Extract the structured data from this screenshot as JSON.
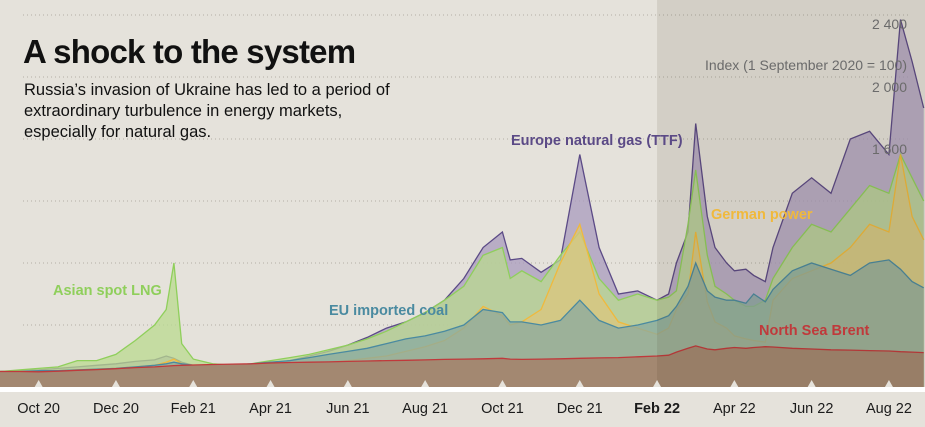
{
  "header": {
    "title": "A shock to the system",
    "subtitle": "Russia’s invasion of Ukraine has led to a period of extraordinary turbulence in energy markets, especially for natural gas."
  },
  "chart_data": {
    "type": "area",
    "title": "A shock to the system",
    "subtitle": "Russia’s invasion of Ukraine has led to a period of extraordinary turbulence in energy markets, especially for natural gas.",
    "ylabel": "Index (1 September 2020 = 100)",
    "xlabel": "",
    "ylim": [
      0,
      2500
    ],
    "yticks": [
      {
        "value": 2400,
        "label": "2 400"
      },
      {
        "value": 2000,
        "label": "2 000"
      },
      {
        "value": 1600,
        "label": "1 600"
      },
      {
        "value": 1200,
        "label": ""
      },
      {
        "value": 800,
        "label": ""
      },
      {
        "value": 400,
        "label": ""
      }
    ],
    "grid": true,
    "x_months_from_sep_2020": [
      0,
      0.5,
      1,
      1.5,
      2,
      2.5,
      3,
      3.5,
      4,
      4.3,
      4.5,
      4.7,
      5,
      5.5,
      6,
      6.5,
      7,
      7.5,
      8,
      8.5,
      9,
      9.5,
      10,
      10.5,
      11,
      11.5,
      12,
      12.5,
      13,
      13.2,
      13.5,
      14,
      14.5,
      15,
      15.5,
      16,
      16.5,
      17,
      17.3,
      17.5,
      17.8,
      18,
      18.3,
      18.5,
      18.8,
      19,
      19.3,
      19.5,
      19.8,
      20,
      20.5,
      21,
      21.5,
      22,
      22.5,
      23,
      23.3,
      23.6,
      23.9
    ],
    "xticks": [
      {
        "month": 1,
        "label": "Oct 20",
        "bold": false
      },
      {
        "month": 3,
        "label": "Dec 20",
        "bold": false
      },
      {
        "month": 5,
        "label": "Feb 21",
        "bold": false
      },
      {
        "month": 7,
        "label": "Apr 21",
        "bold": false
      },
      {
        "month": 9,
        "label": "Jun 21",
        "bold": false
      },
      {
        "month": 11,
        "label": "Aug 21",
        "bold": false
      },
      {
        "month": 13,
        "label": "Oct 21",
        "bold": false
      },
      {
        "month": 15,
        "label": "Dec 21",
        "bold": false
      },
      {
        "month": 17,
        "label": "Feb 22",
        "bold": true
      },
      {
        "month": 19,
        "label": "Apr 22",
        "bold": false
      },
      {
        "month": 21,
        "label": "Jun 22",
        "bold": false
      },
      {
        "month": 23,
        "label": "Aug 22",
        "bold": false
      }
    ],
    "highlight_from_month": 17,
    "series": [
      {
        "name": "Europe natural gas (TTF)",
        "color": "#5b4a86",
        "fill": "#a89bbd",
        "values": [
          100,
          105,
          110,
          120,
          130,
          140,
          150,
          165,
          175,
          200,
          185,
          160,
          140,
          125,
          120,
          130,
          150,
          170,
          200,
          230,
          270,
          320,
          380,
          420,
          480,
          560,
          700,
          900,
          1000,
          820,
          830,
          740,
          820,
          1500,
          900,
          600,
          620,
          560,
          600,
          800,
          1000,
          1700,
          1100,
          900,
          800,
          750,
          760,
          720,
          680,
          900,
          1250,
          1350,
          1250,
          1600,
          1650,
          1500,
          2370,
          2100,
          1800
        ]
      },
      {
        "name": "Asian spot LNG",
        "color": "#8fcf5b",
        "fill": "#b9d98f",
        "values": [
          100,
          110,
          120,
          130,
          170,
          170,
          210,
          300,
          400,
          500,
          800,
          280,
          180,
          150,
          140,
          150,
          170,
          190,
          210,
          240,
          270,
          310,
          360,
          420,
          480,
          560,
          650,
          850,
          900,
          700,
          750,
          680,
          850,
          1000,
          700,
          560,
          600,
          560,
          580,
          620,
          1050,
          1400,
          850,
          650,
          600,
          560,
          520,
          520,
          560,
          700,
          900,
          1050,
          1000,
          1150,
          1300,
          1250,
          1500,
          1350,
          1200
        ]
      },
      {
        "name": "German power",
        "color": "#f0b93c",
        "fill": "#dcc57e",
        "values": [
          100,
          100,
          105,
          105,
          110,
          115,
          120,
          130,
          140,
          160,
          180,
          150,
          130,
          125,
          120,
          125,
          130,
          140,
          150,
          160,
          170,
          185,
          200,
          230,
          260,
          300,
          380,
          520,
          460,
          400,
          420,
          500,
          800,
          1050,
          600,
          420,
          380,
          340,
          380,
          500,
          600,
          1000,
          550,
          420,
          380,
          330,
          310,
          300,
          290,
          560,
          700,
          750,
          800,
          900,
          1050,
          1000,
          1500,
          1100,
          950
        ]
      },
      {
        "name": "EU imported coal",
        "color": "#4a8aa0",
        "fill": "#8aa9a0",
        "values": [
          100,
          100,
          105,
          105,
          110,
          115,
          120,
          130,
          140,
          150,
          160,
          150,
          140,
          135,
          140,
          150,
          160,
          170,
          190,
          210,
          230,
          250,
          280,
          310,
          330,
          360,
          400,
          500,
          480,
          420,
          420,
          400,
          430,
          560,
          430,
          380,
          400,
          430,
          460,
          520,
          650,
          800,
          620,
          580,
          560,
          560,
          540,
          600,
          550,
          630,
          750,
          800,
          760,
          720,
          800,
          820,
          760,
          680,
          640
        ]
      },
      {
        "name": "North Sea Brent",
        "color": "#c0393b",
        "fill": "#a38871",
        "values": [
          100,
          100,
          98,
          102,
          108,
          112,
          118,
          125,
          130,
          135,
          138,
          140,
          142,
          145,
          148,
          150,
          155,
          158,
          160,
          162,
          165,
          168,
          170,
          172,
          175,
          178,
          180,
          182,
          185,
          180,
          178,
          180,
          182,
          185,
          188,
          190,
          195,
          200,
          205,
          225,
          250,
          265,
          245,
          240,
          250,
          255,
          250,
          255,
          260,
          258,
          250,
          245,
          240,
          238,
          235,
          232,
          228,
          225,
          222
        ]
      }
    ],
    "annotations": [
      {
        "text": "Europe natural gas (TTF)",
        "series": "Europe natural gas (TTF)",
        "color": "#5b4a86"
      },
      {
        "text": "Asian spot LNG",
        "series": "Asian spot LNG",
        "color": "#8fcf5b"
      },
      {
        "text": "German power",
        "series": "German power",
        "color": "#f0b93c"
      },
      {
        "text": "EU imported coal",
        "series": "EU imported coal",
        "color": "#4a8aa0"
      },
      {
        "text": "North Sea Brent",
        "series": "North Sea Brent",
        "color": "#c0393b"
      }
    ]
  }
}
